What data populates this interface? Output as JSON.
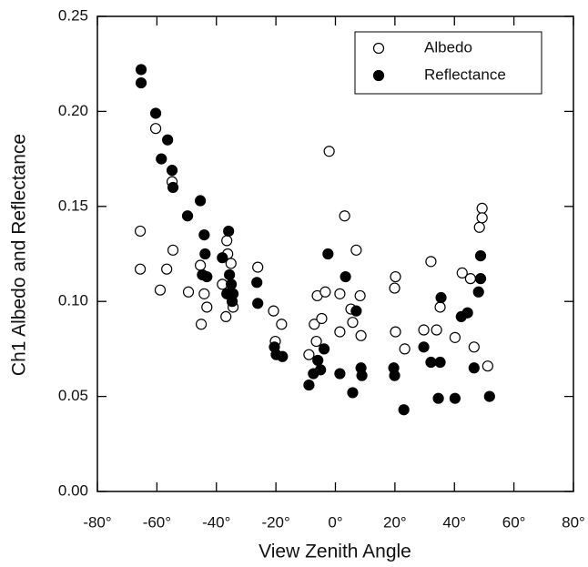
{
  "chart_data": {
    "type": "scatter",
    "xlabel": "View Zenith Angle",
    "ylabel": "Ch1 Albedo and Reflectance",
    "xlim": [
      -80,
      80
    ],
    "ylim": [
      0,
      0.25
    ],
    "xticks": [
      {
        "value": -80,
        "label": "-80°"
      },
      {
        "value": -60,
        "label": "-60°"
      },
      {
        "value": -40,
        "label": "-40°"
      },
      {
        "value": -20,
        "label": "-20°"
      },
      {
        "value": 0,
        "label": "0°"
      },
      {
        "value": 20,
        "label": "20°"
      },
      {
        "value": 40,
        "label": "40°"
      },
      {
        "value": 60,
        "label": "60°"
      },
      {
        "value": 80,
        "label": "80°"
      }
    ],
    "yticks": [
      {
        "value": 0,
        "label": "0.00"
      },
      0.05,
      {
        "value": 0.1,
        "label": "0.10"
      },
      {
        "value": 0.15,
        "label": "0.15"
      },
      {
        "value": 0.2,
        "label": "0.20"
      },
      0.25
    ],
    "legend": "upper right",
    "series": [
      {
        "name": "Albedo",
        "color": "#000000",
        "filled": false,
        "x": [
          -65.6,
          -65.6,
          -60.4,
          -58.9,
          -56.7,
          -54.9,
          -54.6,
          -49.4,
          -45.4,
          -45.1,
          -44.1,
          -43.2,
          -38.0,
          -36.5,
          -36.2,
          -36.8,
          -35.1,
          -34.4,
          -26.1,
          -20.8,
          -20.2,
          -18.1,
          -8.9,
          -7.1,
          -6.4,
          -6.1,
          -4.6,
          -3.4,
          -2.1,
          1.5,
          1.5,
          3.1,
          5.2,
          5.8,
          7.0,
          8.3,
          8.6,
          19.9,
          20.2,
          20.2,
          23.3,
          29.7,
          32.1,
          34.0,
          35.2,
          40.2,
          42.6,
          45.4,
          46.6,
          48.4,
          49.3,
          49.3,
          51.2
        ],
        "values": [
          0.137,
          0.117,
          0.191,
          0.106,
          0.117,
          0.163,
          0.127,
          0.105,
          0.119,
          0.088,
          0.104,
          0.097,
          0.109,
          0.132,
          0.125,
          0.092,
          0.12,
          0.097,
          0.118,
          0.095,
          0.079,
          0.088,
          0.072,
          0.088,
          0.079,
          0.103,
          0.091,
          0.105,
          0.179,
          0.104,
          0.084,
          0.145,
          0.096,
          0.089,
          0.127,
          0.103,
          0.082,
          0.107,
          0.113,
          0.084,
          0.075,
          0.085,
          0.121,
          0.085,
          0.097,
          0.081,
          0.115,
          0.112,
          0.076,
          0.139,
          0.149,
          0.144,
          0.066
        ]
      },
      {
        "name": "Reflectance",
        "color": "#000000",
        "filled": true,
        "x": [
          -65.3,
          -65.3,
          -60.4,
          -58.5,
          -56.4,
          -54.9,
          -54.6,
          -49.7,
          -45.4,
          -44.1,
          -43.8,
          -44.7,
          -43.2,
          -38.0,
          -36.5,
          -35.9,
          -35.6,
          -35.0,
          -34.4,
          -34.7,
          -26.4,
          -26.1,
          -20.5,
          -19.9,
          -17.8,
          -8.9,
          -7.4,
          -5.9,
          -5.0,
          -3.8,
          -2.5,
          1.5,
          3.4,
          5.8,
          7.0,
          8.6,
          8.9,
          19.6,
          19.9,
          23.0,
          29.7,
          32.1,
          34.6,
          35.2,
          35.5,
          40.2,
          42.3,
          44.4,
          46.6,
          48.1,
          48.8,
          48.8,
          51.8
        ],
        "values": [
          0.222,
          0.215,
          0.199,
          0.175,
          0.185,
          0.169,
          0.16,
          0.145,
          0.153,
          0.135,
          0.125,
          0.114,
          0.113,
          0.123,
          0.104,
          0.137,
          0.114,
          0.109,
          0.104,
          0.1,
          0.11,
          0.099,
          0.076,
          0.072,
          0.071,
          0.056,
          0.062,
          0.069,
          0.064,
          0.075,
          0.125,
          0.062,
          0.113,
          0.052,
          0.095,
          0.065,
          0.061,
          0.065,
          0.061,
          0.043,
          0.076,
          0.068,
          0.049,
          0.068,
          0.102,
          0.049,
          0.092,
          0.094,
          0.065,
          0.105,
          0.112,
          0.124,
          0.05
        ]
      }
    ]
  }
}
